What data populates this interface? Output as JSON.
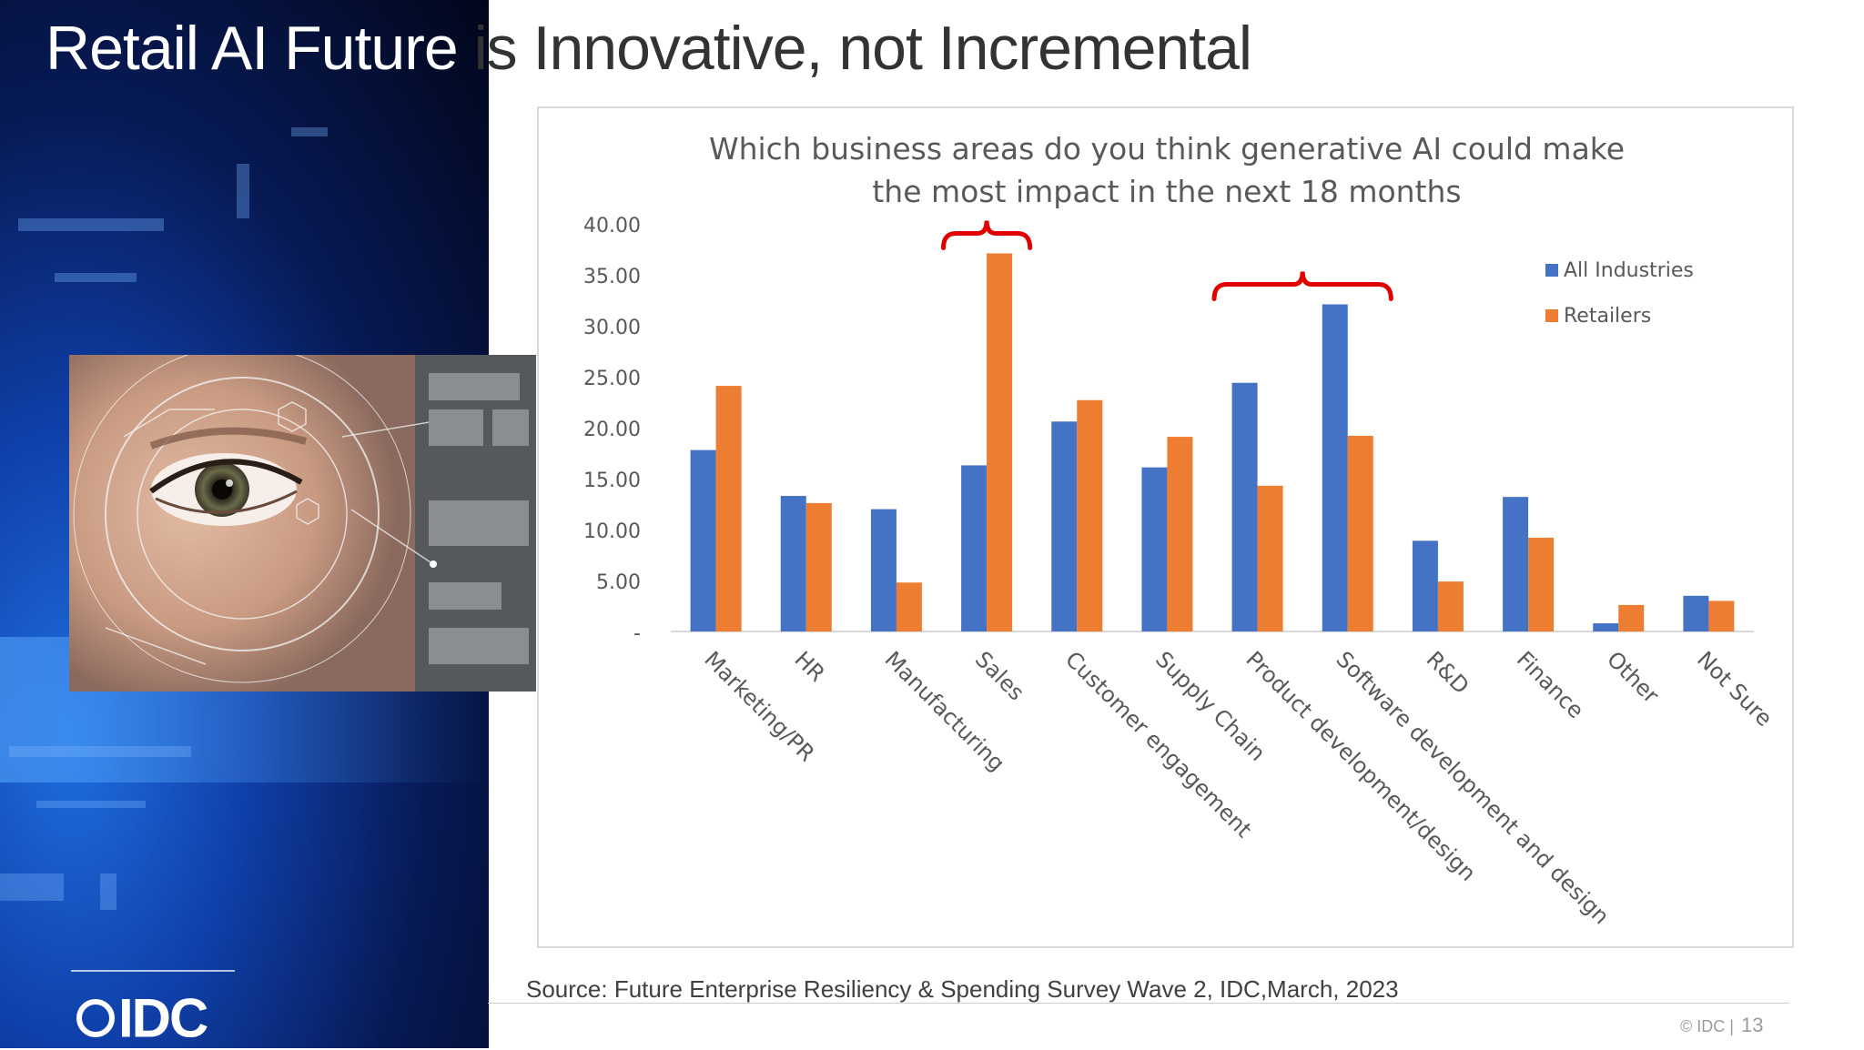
{
  "slide": {
    "title_white": "Retail AI Future ",
    "title_dark": "is Innovative, not Incremental",
    "source": "Source: Future Enterprise Resiliency & Spending Survey Wave 2, IDC,March, 2023",
    "copyright": "© IDC |",
    "page_number": "13",
    "logo_text": "IDC"
  },
  "colors": {
    "all_industries": "#4472C4",
    "retailers": "#ED7D31",
    "highlight_brace": "#E00000",
    "axis_text": "#595959",
    "title_text": "#595959"
  },
  "chart_data": {
    "type": "bar",
    "title": "Which business areas do you think generative AI could make the most impact in the next 18 months",
    "title_lines": [
      "Which business areas do you think generative AI could make",
      "the most impact in the next 18 months"
    ],
    "categories": [
      "Marketing/PR",
      "HR",
      "Manufacturing",
      "Sales",
      "Customer engagement",
      "Supply Chain",
      "Product development/design",
      "Software development and design",
      "R&D",
      "Finance",
      "Other",
      "Not Sure"
    ],
    "series": [
      {
        "name": "All Industries",
        "values": [
          17.8,
          13.3,
          12.0,
          16.3,
          20.6,
          16.1,
          24.4,
          32.1,
          8.9,
          13.2,
          0.8,
          3.5
        ]
      },
      {
        "name": "Retailers",
        "values": [
          24.1,
          12.6,
          4.8,
          37.1,
          22.7,
          19.1,
          14.3,
          19.2,
          4.9,
          9.2,
          2.6,
          3.0
        ]
      }
    ],
    "ylim": [
      0,
      40
    ],
    "yticks": [
      "-",
      "5.00",
      "10.00",
      "15.00",
      "20.00",
      "25.00",
      "30.00",
      "35.00",
      "40.00"
    ],
    "xlabel": "",
    "ylabel": "",
    "grid": false,
    "legend_position": "right",
    "highlighted_categories": [
      [
        "Sales"
      ],
      [
        "Product development/design",
        "Software development and design"
      ]
    ]
  }
}
